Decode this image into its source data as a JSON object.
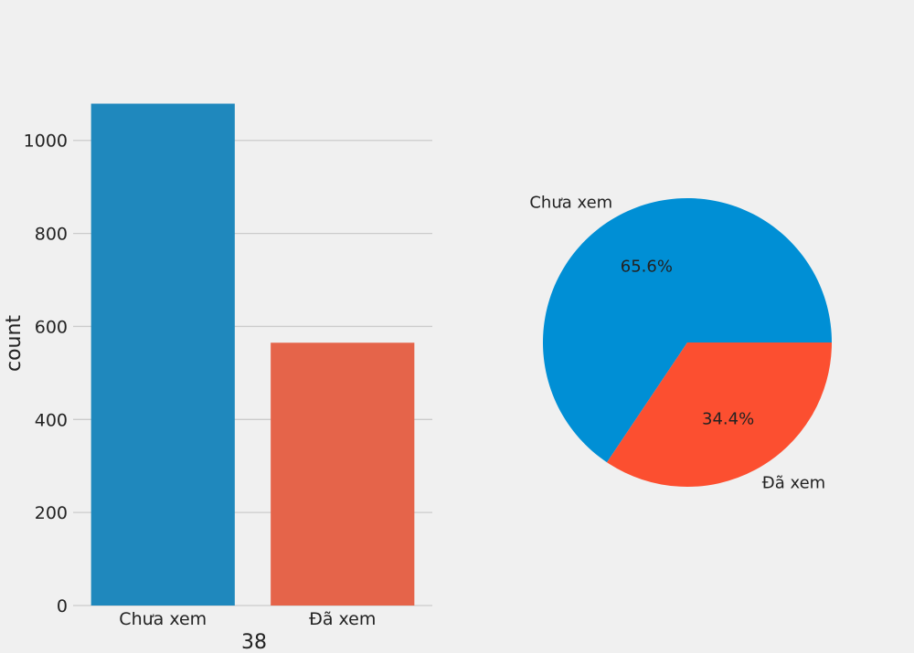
{
  "chart_data": [
    {
      "type": "bar",
      "categories": [
        "Chưa xem",
        "Đã xem"
      ],
      "values": [
        1079,
        565
      ],
      "xlabel": "38",
      "ylabel": "count",
      "ylim": [
        0,
        1080
      ],
      "yticks": [
        0,
        200,
        400,
        600,
        800,
        1000
      ],
      "grid": "horizontal",
      "colors": [
        "#1f88bd",
        "#e5644a"
      ]
    },
    {
      "type": "pie",
      "labels": [
        "Chưa xem",
        "Đã xem"
      ],
      "values": [
        65.6,
        34.4
      ],
      "autopct_labels": [
        "65.6%",
        "34.4%"
      ],
      "colors": [
        "#008fd5",
        "#fc4f30"
      ]
    }
  ]
}
